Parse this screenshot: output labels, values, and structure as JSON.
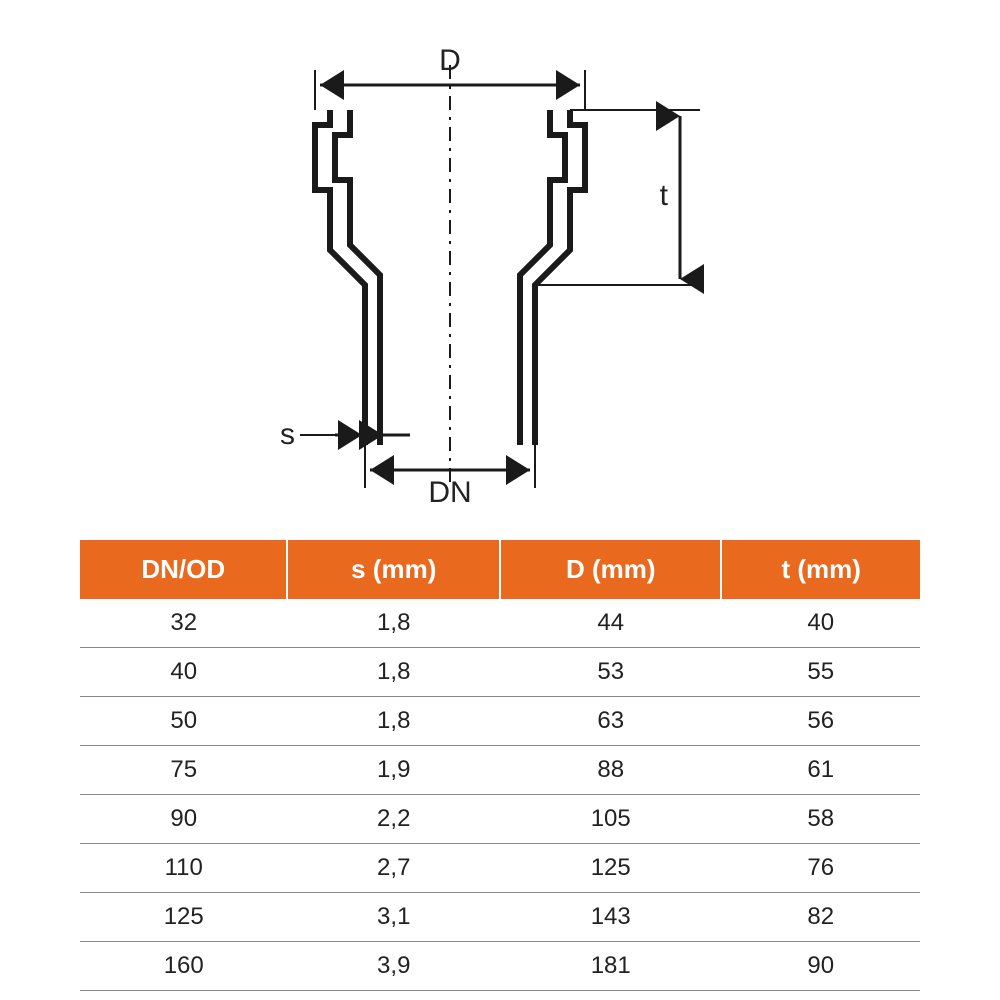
{
  "diagram": {
    "labels": {
      "D": "D",
      "t": "t",
      "s": "s",
      "DN": "DN"
    },
    "stroke_color": "#1a1a1a",
    "centerline_dash": "12 6 3 6"
  },
  "table": {
    "header_bg": "#e96a1f",
    "header_fg": "#ffffff",
    "row_border": "#888888",
    "cell_color": "#222222",
    "columns": [
      "DN/OD",
      "s (mm)",
      "D (mm)",
      "t (mm)"
    ],
    "rows": [
      [
        "32",
        "1,8",
        "44",
        "40"
      ],
      [
        "40",
        "1,8",
        "53",
        "55"
      ],
      [
        "50",
        "1,8",
        "63",
        "56"
      ],
      [
        "75",
        "1,9",
        "88",
        "61"
      ],
      [
        "90",
        "2,2",
        "105",
        "58"
      ],
      [
        "110",
        "2,7",
        "125",
        "76"
      ],
      [
        "125",
        "3,1",
        "143",
        "82"
      ],
      [
        "160",
        "3,9",
        "181",
        "90"
      ]
    ]
  }
}
